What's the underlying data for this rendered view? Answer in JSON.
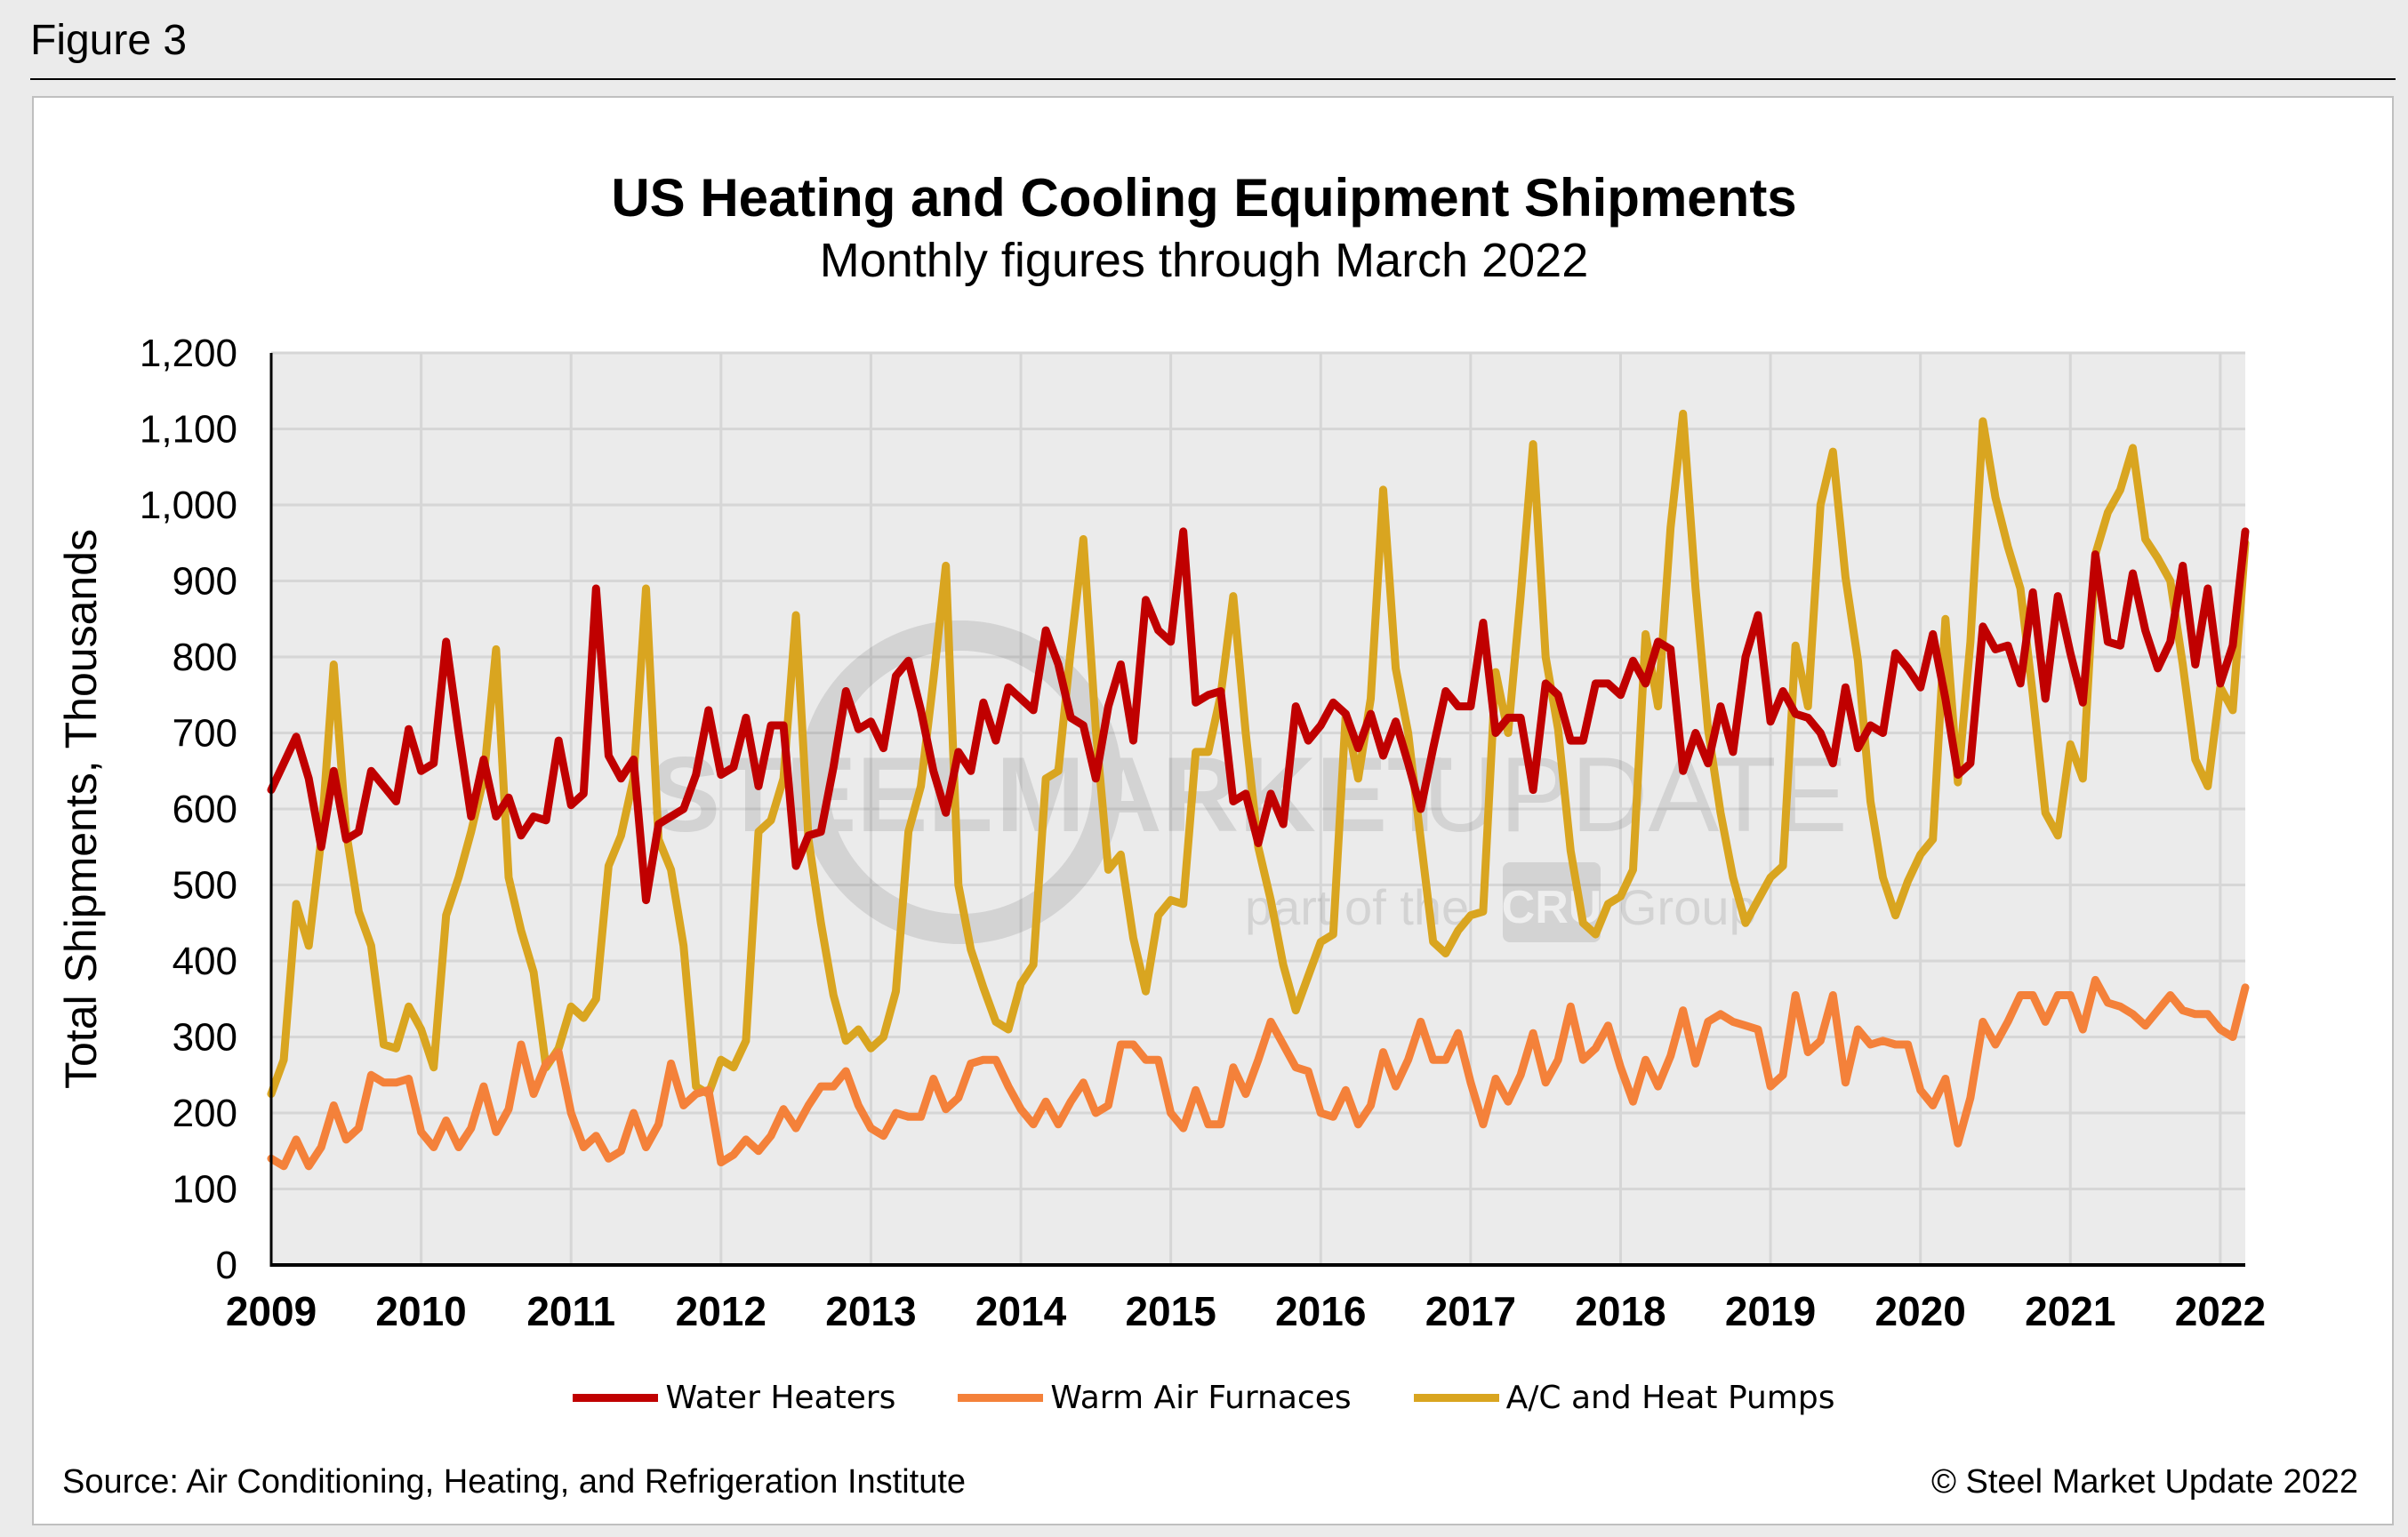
{
  "figure_label": "Figure 3",
  "source": "Source: Air Conditioning, Heating, and Refrigeration Institute",
  "copyright": "© Steel Market Update 2022",
  "watermark": {
    "line1a": "STEEL",
    "line1b": "MARKET",
    "line1c": "UPDATE",
    "line2a": "part of the",
    "line2b": "CRU",
    "line2c": "Group"
  },
  "colors": {
    "water_heaters": "#c00000",
    "warm_air_furnaces": "#f4813a",
    "ac_heat_pumps": "#d9a520",
    "plot_bg": "#ebebeb",
    "grid": "#d6d6d6"
  },
  "chart_data": {
    "type": "line",
    "title": "US Heating and Cooling Equipment Shipments",
    "subtitle": "Monthly figures through March 2022",
    "ylabel": "Total Shipments, Thousands",
    "xlabel": "",
    "ylim": [
      0,
      1200
    ],
    "yticks": [
      0,
      100,
      200,
      300,
      400,
      500,
      600,
      700,
      800,
      900,
      1000,
      1100,
      1200
    ],
    "ytick_labels": [
      "0",
      "100",
      "200",
      "300",
      "400",
      "500",
      "600",
      "700",
      "800",
      "900",
      "1,000",
      "1,100",
      "1,200"
    ],
    "xtick_labels": [
      "2009",
      "2010",
      "2011",
      "2012",
      "2013",
      "2014",
      "2015",
      "2016",
      "2017",
      "2018",
      "2019",
      "2020",
      "2021",
      "2022"
    ],
    "x_start": "2009-01",
    "x_end": "2022-03",
    "frequency": "monthly",
    "grid": true,
    "legend_position": "bottom",
    "series": [
      {
        "name": "Water Heaters",
        "color": "#c00000",
        "values": [
          625,
          660,
          695,
          640,
          550,
          650,
          560,
          570,
          650,
          630,
          610,
          705,
          650,
          660,
          820,
          700,
          590,
          665,
          590,
          615,
          565,
          590,
          585,
          690,
          605,
          620,
          890,
          670,
          640,
          665,
          480,
          580,
          590,
          600,
          645,
          730,
          645,
          655,
          720,
          630,
          710,
          710,
          525,
          565,
          570,
          655,
          755,
          705,
          715,
          680,
          775,
          795,
          730,
          650,
          595,
          675,
          650,
          740,
          690,
          760,
          745,
          730,
          835,
          790,
          720,
          710,
          640,
          735,
          790,
          690,
          875,
          835,
          820,
          965,
          740,
          750,
          755,
          610,
          620,
          555,
          620,
          580,
          735,
          690,
          710,
          740,
          725,
          680,
          725,
          670,
          715,
          660,
          600,
          680,
          755,
          735,
          735,
          845,
          700,
          720,
          720,
          625,
          765,
          750,
          690,
          690,
          765,
          765,
          750,
          795,
          765,
          820,
          810,
          650,
          700,
          660,
          735,
          675,
          800,
          855,
          715,
          755,
          725,
          720,
          700,
          660,
          760,
          680,
          710,
          700,
          805,
          785,
          760,
          830,
          745,
          645,
          660,
          840,
          810,
          815,
          765,
          885,
          745,
          880,
          805,
          740,
          935,
          820,
          815,
          910,
          835,
          785,
          820,
          920,
          790,
          890,
          765,
          815,
          965
        ]
      },
      {
        "name": "Warm Air Furnaces",
        "color": "#f4813a",
        "values": [
          140,
          130,
          165,
          130,
          155,
          210,
          165,
          180,
          250,
          240,
          240,
          245,
          175,
          155,
          190,
          155,
          180,
          235,
          175,
          205,
          290,
          225,
          265,
          280,
          200,
          155,
          170,
          140,
          150,
          200,
          155,
          185,
          265,
          210,
          225,
          230,
          135,
          145,
          165,
          150,
          170,
          205,
          180,
          210,
          235,
          235,
          255,
          210,
          180,
          170,
          200,
          195,
          195,
          245,
          205,
          220,
          265,
          270,
          270,
          235,
          205,
          185,
          215,
          185,
          215,
          240,
          200,
          210,
          290,
          290,
          270,
          270,
          200,
          180,
          230,
          185,
          185,
          260,
          225,
          270,
          320,
          290,
          260,
          255,
          200,
          195,
          230,
          185,
          210,
          280,
          235,
          270,
          320,
          270,
          270,
          305,
          240,
          185,
          245,
          215,
          250,
          305,
          240,
          270,
          340,
          270,
          285,
          315,
          260,
          215,
          270,
          235,
          275,
          335,
          265,
          320,
          330,
          320,
          315,
          310,
          235,
          250,
          355,
          280,
          295,
          355,
          240,
          310,
          290,
          295,
          290,
          290,
          230,
          210,
          245,
          160,
          220,
          320,
          290,
          320,
          355,
          355,
          320,
          355,
          355,
          310,
          375,
          345,
          340,
          330,
          315,
          335,
          355,
          335,
          330,
          330,
          310,
          300,
          365
        ]
      },
      {
        "name": "A/C and Heat Pumps",
        "color": "#d9a520",
        "values": [
          225,
          270,
          475,
          420,
          560,
          790,
          570,
          465,
          420,
          290,
          285,
          340,
          310,
          260,
          460,
          510,
          570,
          640,
          810,
          510,
          440,
          385,
          260,
          285,
          340,
          325,
          350,
          525,
          565,
          640,
          890,
          560,
          520,
          420,
          235,
          225,
          270,
          260,
          295,
          570,
          585,
          640,
          855,
          560,
          450,
          355,
          295,
          310,
          285,
          300,
          360,
          570,
          630,
          770,
          920,
          500,
          415,
          365,
          320,
          310,
          370,
          395,
          640,
          650,
          810,
          955,
          705,
          520,
          540,
          430,
          360,
          460,
          480,
          475,
          675,
          675,
          750,
          880,
          700,
          550,
          480,
          395,
          335,
          380,
          425,
          435,
          725,
          640,
          745,
          1020,
          785,
          700,
          560,
          425,
          410,
          440,
          460,
          465,
          780,
          700,
          880,
          1080,
          800,
          705,
          545,
          450,
          435,
          475,
          485,
          520,
          830,
          735,
          970,
          1120,
          890,
          705,
          595,
          510,
          450,
          480,
          510,
          525,
          815,
          735,
          1000,
          1070,
          905,
          795,
          610,
          510,
          460,
          505,
          540,
          560,
          850,
          635,
          820,
          1110,
          1010,
          945,
          890,
          750,
          595,
          565,
          685,
          640,
          935,
          990,
          1020,
          1075,
          955,
          930,
          900,
          790,
          665,
          630,
          760,
          730,
          950
        ]
      }
    ]
  }
}
